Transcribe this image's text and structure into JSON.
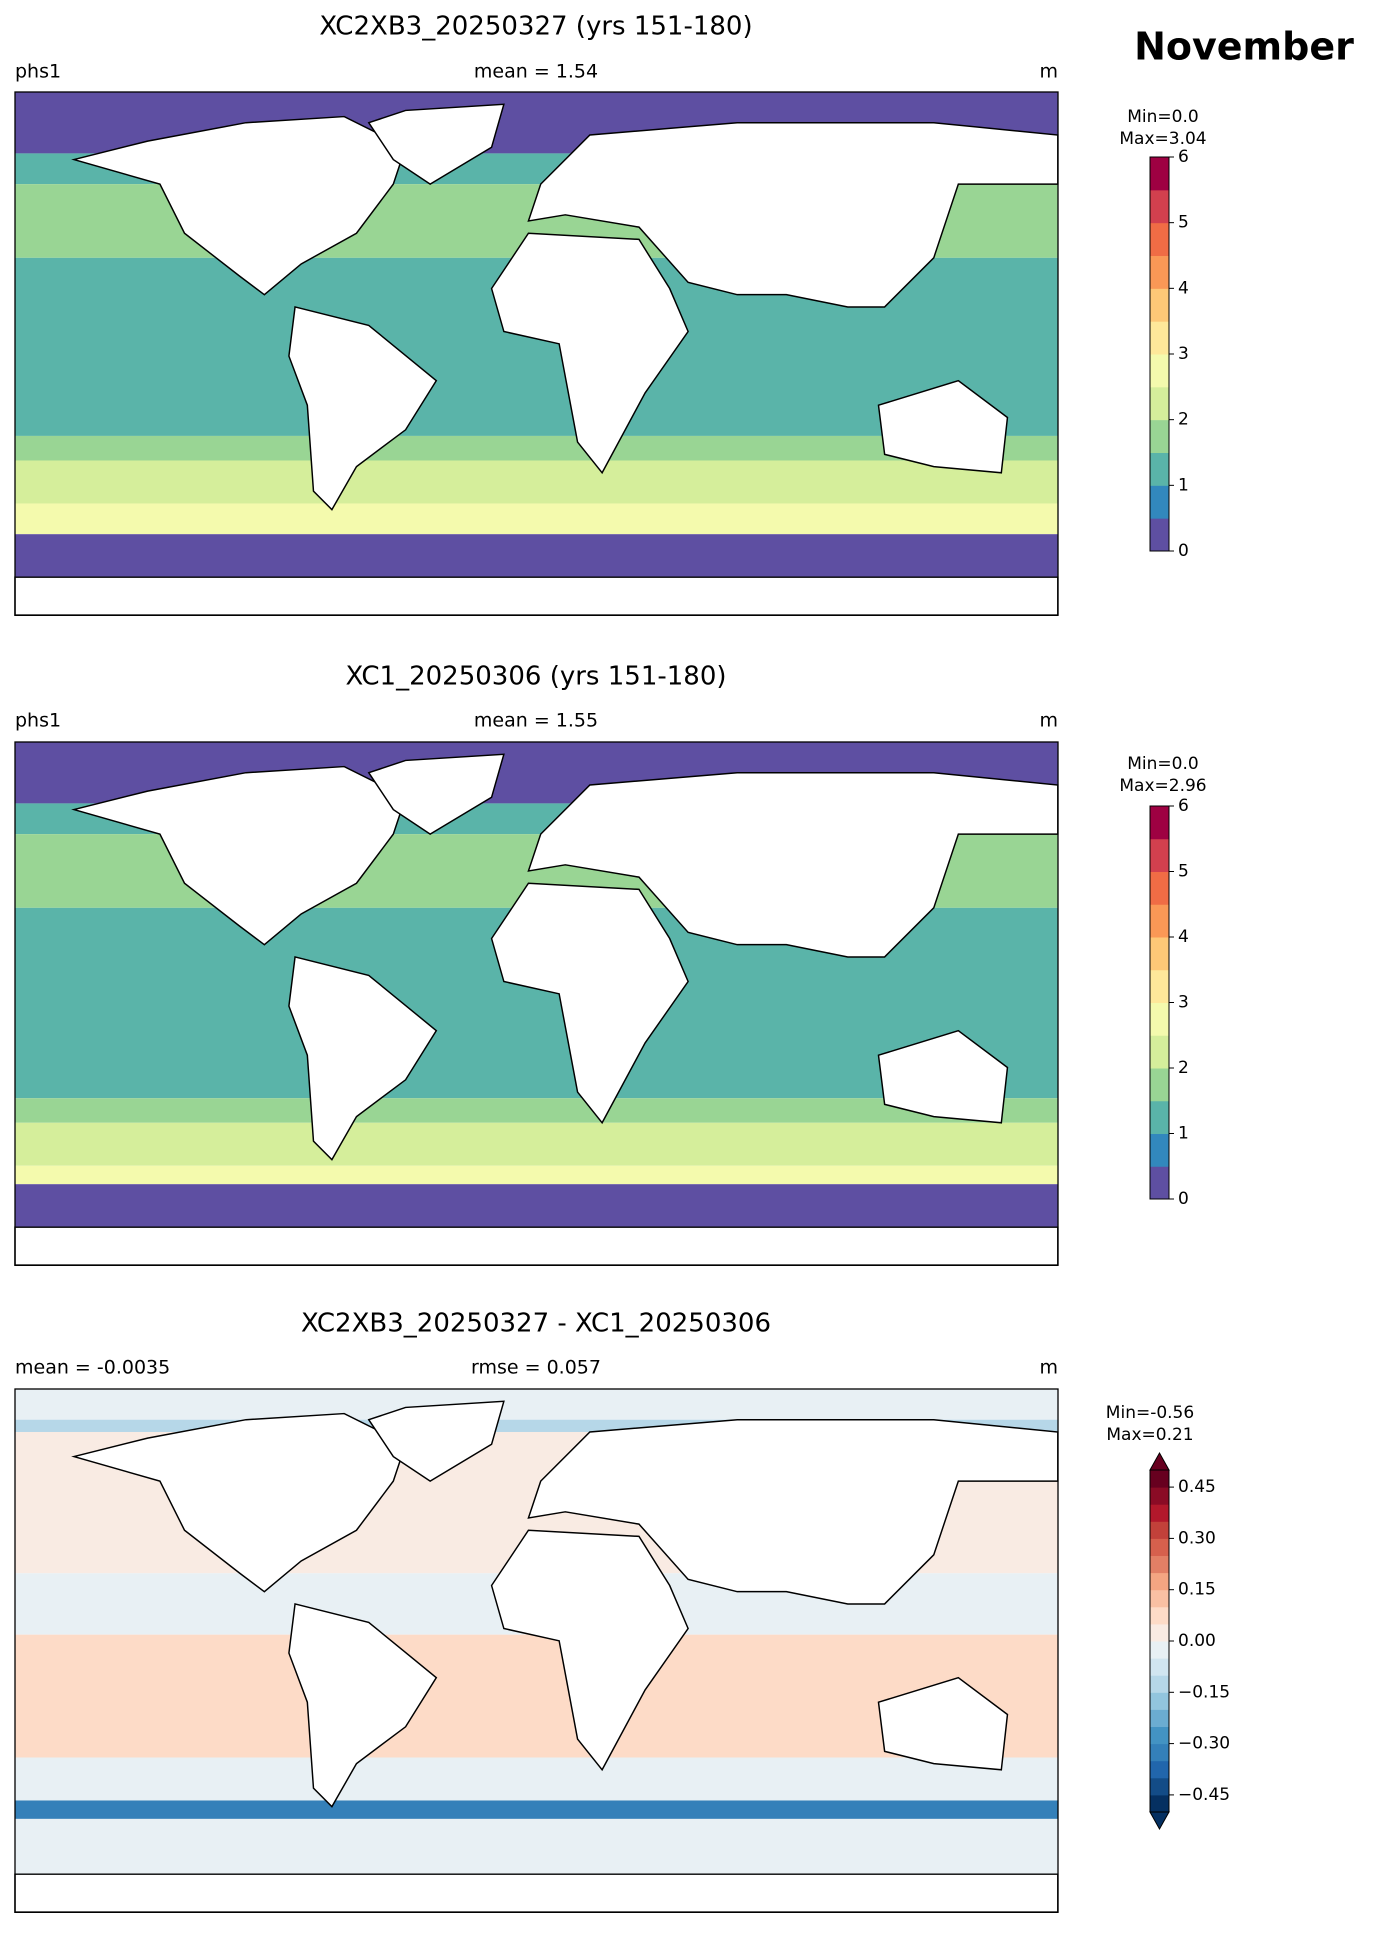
{
  "figure_title": "November",
  "panels": [
    {
      "title": "XC2XB3_20250327 (yrs 151-180)",
      "left_label": "phs1",
      "center_label": "mean = 1.54",
      "right_label": "m",
      "min_label": "Min=0.0",
      "max_label": "Max=3.04",
      "colorbar": {
        "ylim": [
          0,
          6
        ],
        "yticks": [
          0,
          1,
          2,
          3,
          4,
          5,
          6
        ],
        "colors": [
          "#5e4fa2",
          "#3288bd",
          "#5ab4a9",
          "#99d594",
          "#d5ee9b",
          "#f4faad",
          "#fee89a",
          "#fdc877",
          "#fa9856",
          "#f06c45",
          "#d2404e",
          "#9e0142"
        ]
      }
    },
    {
      "title": "XC1_20250306 (yrs 151-180)",
      "left_label": "phs1",
      "center_label": "mean = 1.55",
      "right_label": "m",
      "min_label": "Min=0.0",
      "max_label": "Max=2.96",
      "colorbar": {
        "ylim": [
          0,
          6
        ],
        "yticks": [
          0,
          1,
          2,
          3,
          4,
          5,
          6
        ],
        "colors": [
          "#5e4fa2",
          "#3288bd",
          "#5ab4a9",
          "#99d594",
          "#d5ee9b",
          "#f4faad",
          "#fee89a",
          "#fdc877",
          "#fa9856",
          "#f06c45",
          "#d2404e",
          "#9e0142"
        ]
      }
    },
    {
      "title": "XC2XB3_20250327 - XC1_20250306",
      "left_label": "mean = -0.0035",
      "center_label": "rmse = 0.057",
      "right_label": "m",
      "min_label": "Min=-0.56",
      "max_label": "Max=0.21",
      "colorbar": {
        "ylim": [
          -0.5,
          0.5
        ],
        "yticks": [
          {
            "value": -0.45,
            "label": "−0.45"
          },
          {
            "value": -0.3,
            "label": "−0.30"
          },
          {
            "value": -0.15,
            "label": "−0.15"
          },
          {
            "value": 0,
            "label": "0.00"
          },
          0.15,
          {
            "value": 0.3,
            "label": "0.30"
          },
          0.45
        ],
        "colors": [
          "#053061",
          "#134c87",
          "#2166ac",
          "#3480b9",
          "#4393c3",
          "#6bacd1",
          "#92c5de",
          "#b6d7e8",
          "#d1e5f0",
          "#e8f0f4",
          "#f9ebe3",
          "#fddbc7",
          "#f9c0a3",
          "#f4a582",
          "#e27f65",
          "#d6604d",
          "#c2413a",
          "#b2182b",
          "#8a0b25",
          "#67001f"
        ],
        "extend": "both"
      }
    }
  ]
}
